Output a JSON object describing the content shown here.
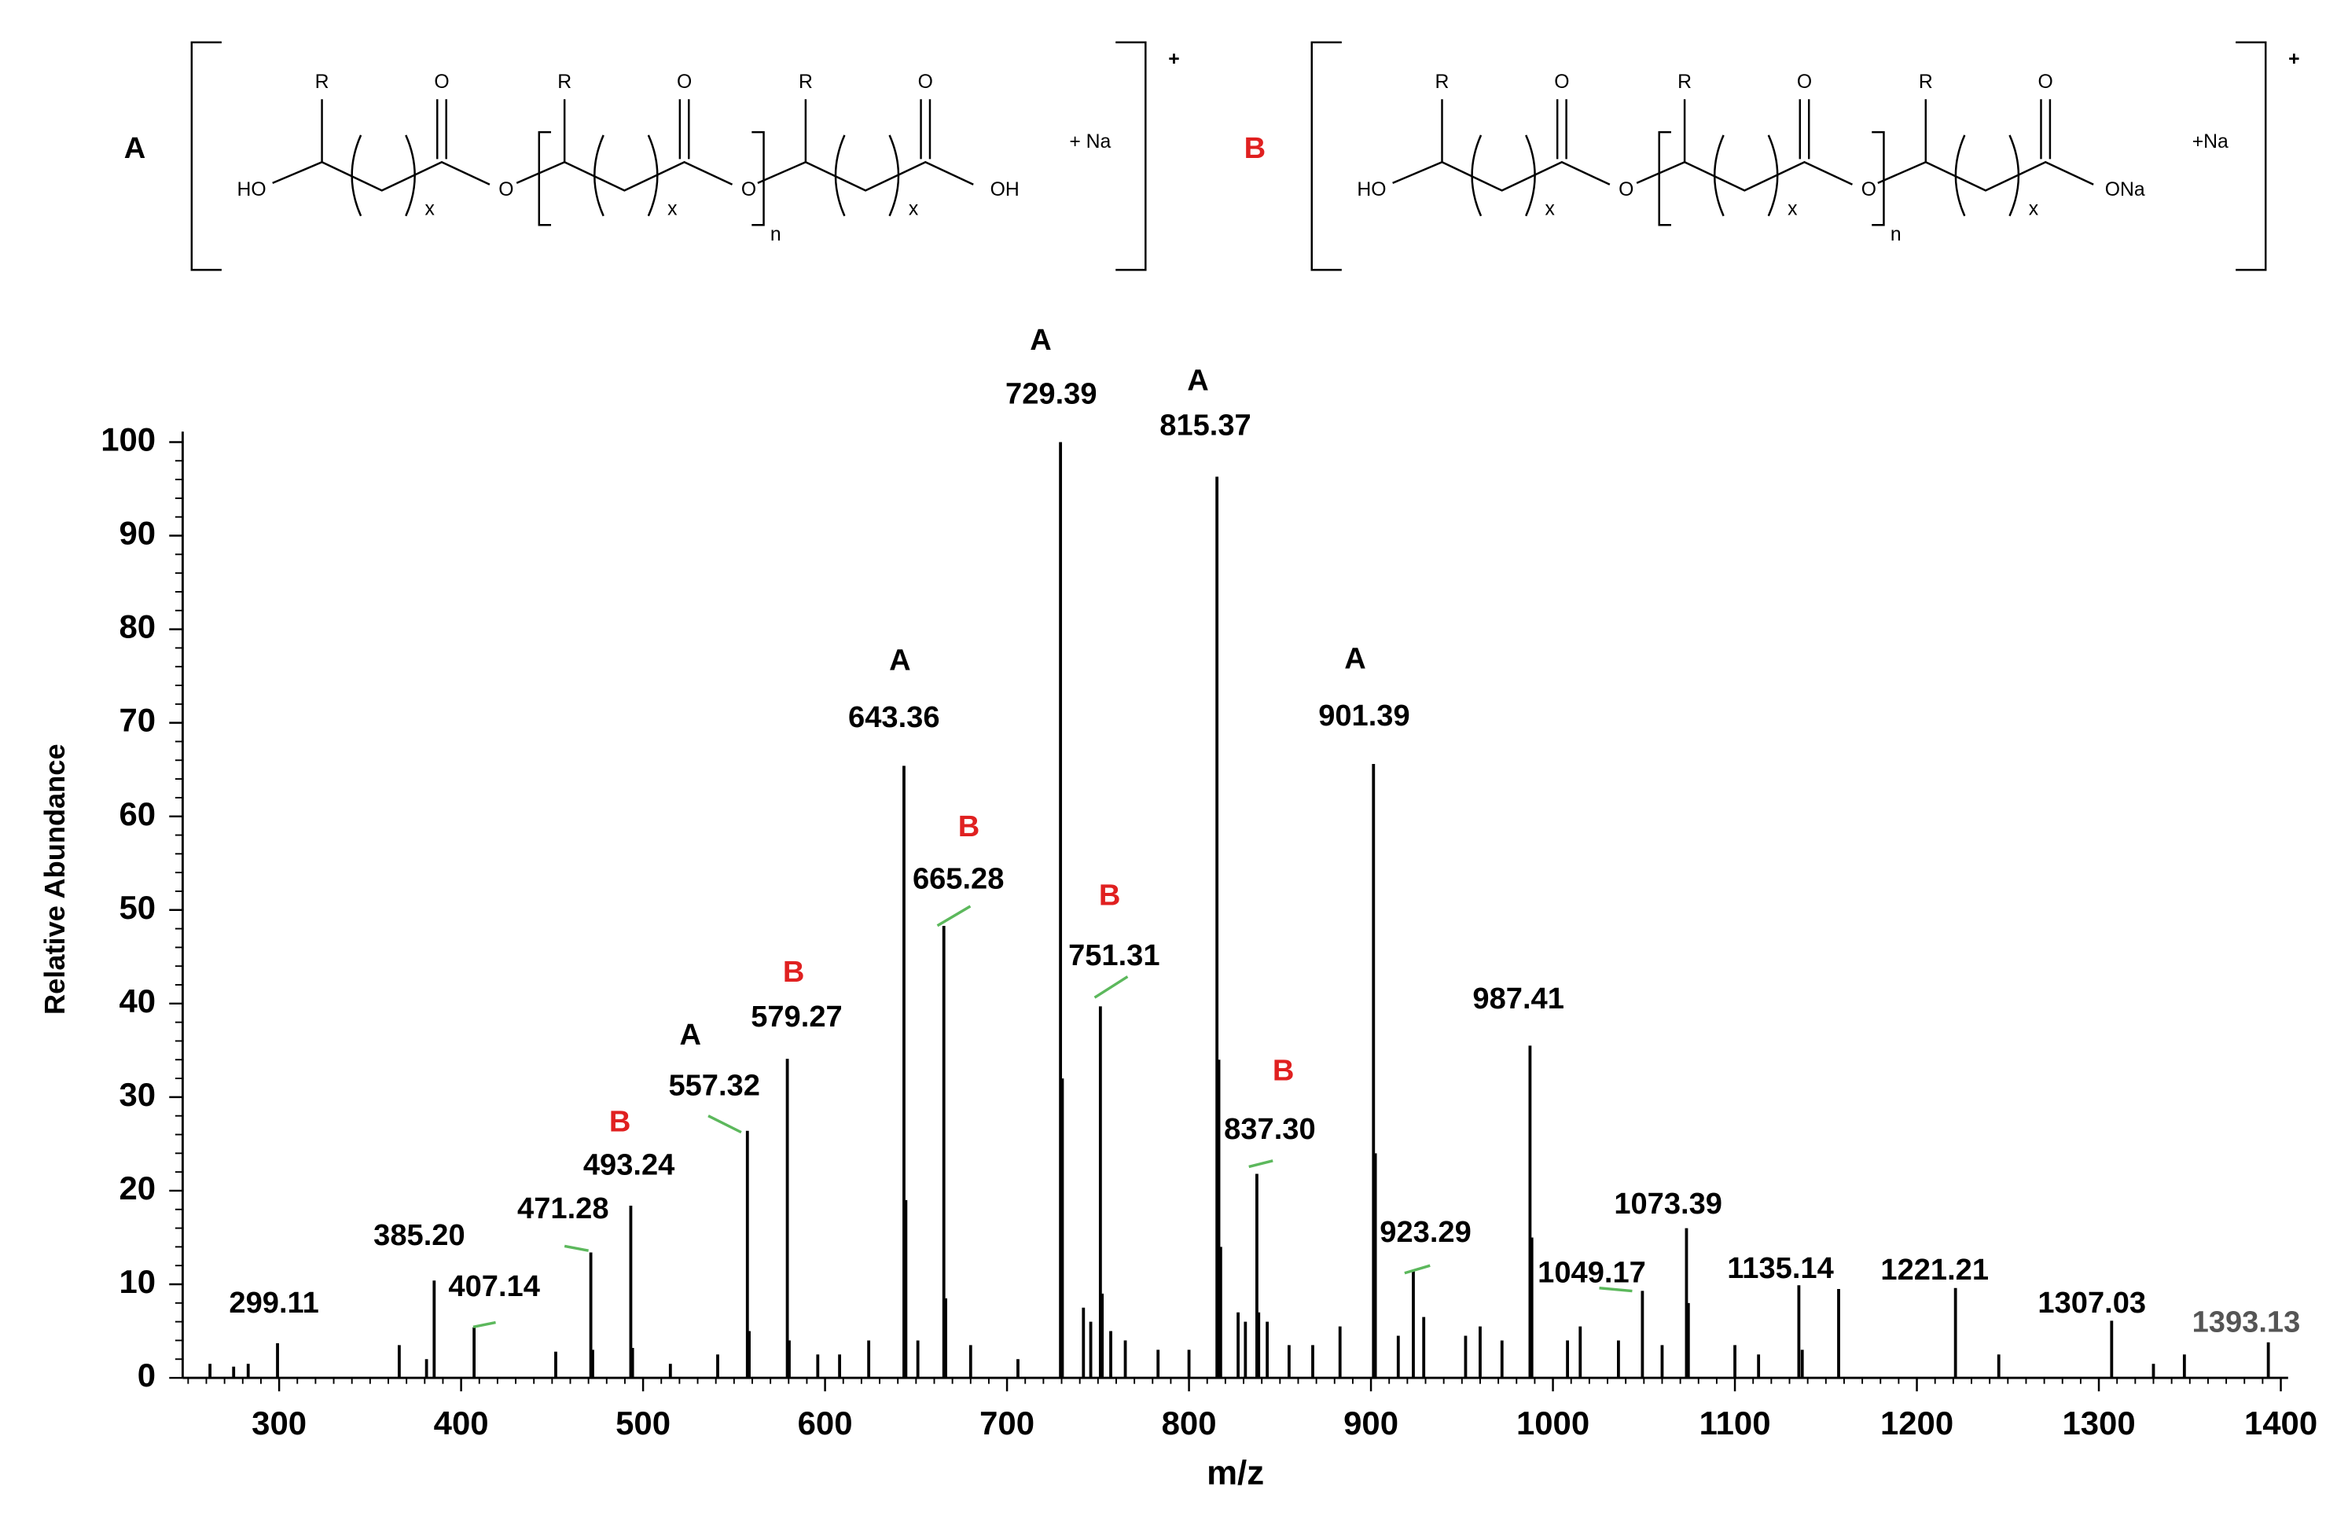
{
  "structures": [
    {
      "label": "A",
      "substituent": "R",
      "carbonyl_o": "O",
      "ester_o": "O",
      "left_end": "HO",
      "right_end": "OH",
      "repeat": "x",
      "count": "n",
      "counter_ion": "+ Na",
      "charge": "+"
    },
    {
      "label": "B",
      "substituent": "R",
      "carbonyl_o": "O",
      "ester_o": "O",
      "left_end": "HO",
      "right_end": "ONa",
      "repeat": "x",
      "count": "n",
      "counter_ion": "+Na",
      "charge": "+"
    }
  ],
  "chart_data": {
    "type": "spectrum",
    "xlabel": "m/z",
    "ylabel": "Relative Abundance",
    "xlim": [
      247,
      1404
    ],
    "ylim": [
      0,
      100
    ],
    "xticks": [
      300,
      400,
      500,
      600,
      700,
      800,
      900,
      1000,
      1100,
      1200,
      1300,
      1400
    ],
    "yticks": [
      0,
      10,
      20,
      30,
      40,
      50,
      60,
      70,
      80,
      90,
      100
    ],
    "color": "#000000",
    "leader_color": "#5cb85c",
    "ion_colors": {
      "A": "#000000",
      "B": "#e02020"
    },
    "series": [
      {
        "x": [
          299.11,
          385.2,
          407.14,
          471.28,
          493.24,
          557.32,
          579.27,
          643.36,
          665.28,
          729.39,
          751.31,
          815.37,
          837.3,
          901.39,
          923.29,
          987.41,
          1049.17,
          1073.39,
          1135.14,
          1221.21,
          1307.03,
          1393.13
        ],
        "x_labels": [
          "299.11",
          "385.20",
          "407.14",
          "471.28",
          "493.24",
          "557.32",
          "579.27",
          "643.36",
          "665.28",
          "729.39",
          "751.31",
          "815.37",
          "837.30",
          "901.39",
          "923.29",
          "987.41",
          "1049.17",
          "1073.39",
          "1135.14",
          "1221.21",
          "1307.03",
          "1393.13"
        ],
        "ions": [
          null,
          null,
          null,
          null,
          "B",
          "A",
          "B",
          "A",
          "B",
          "A",
          "B",
          "A",
          "B",
          "A",
          null,
          null,
          null,
          null,
          null,
          null,
          null,
          null
        ],
        "values": [
          3.7,
          10.4,
          5.4,
          13.4,
          18.4,
          26.4,
          34.1,
          65.4,
          48.3,
          100,
          39.7,
          96.3,
          21.8,
          65.6,
          11.5,
          35.5,
          9.3,
          16,
          9.9,
          9.6,
          6.1,
          3.8
        ]
      },
      {
        "x": [
          262,
          275,
          283,
          366,
          381,
          452,
          472.3,
          494.2,
          515,
          541,
          558.3,
          580.3,
          596,
          608,
          624,
          644.4,
          651,
          666.3,
          680,
          706,
          730.4,
          742,
          746,
          752.3,
          757,
          765,
          783,
          800,
          816.4,
          817.4,
          827,
          831,
          838.3,
          843,
          855,
          868,
          883,
          902.4,
          915,
          929,
          952,
          960,
          972,
          988.4,
          1008,
          1015,
          1036,
          1060,
          1074.4,
          1100,
          1113,
          1137,
          1157,
          1245,
          1330,
          1347
        ],
        "values": [
          1.5,
          1.2,
          1.5,
          3.5,
          2,
          2.8,
          3,
          3.2,
          1.5,
          2.5,
          5,
          4,
          2.5,
          2.5,
          4,
          19,
          4,
          8.5,
          3.5,
          2,
          32,
          7.5,
          6,
          9,
          5,
          4,
          3,
          3,
          34,
          14,
          7,
          6,
          7,
          6,
          3.5,
          3.5,
          5.5,
          24,
          4.5,
          6.5,
          4.5,
          5.5,
          4,
          15,
          4,
          5.5,
          4,
          3.5,
          8,
          3.5,
          2.5,
          3,
          9.5,
          2.5,
          1.5,
          2.5
        ]
      }
    ]
  }
}
